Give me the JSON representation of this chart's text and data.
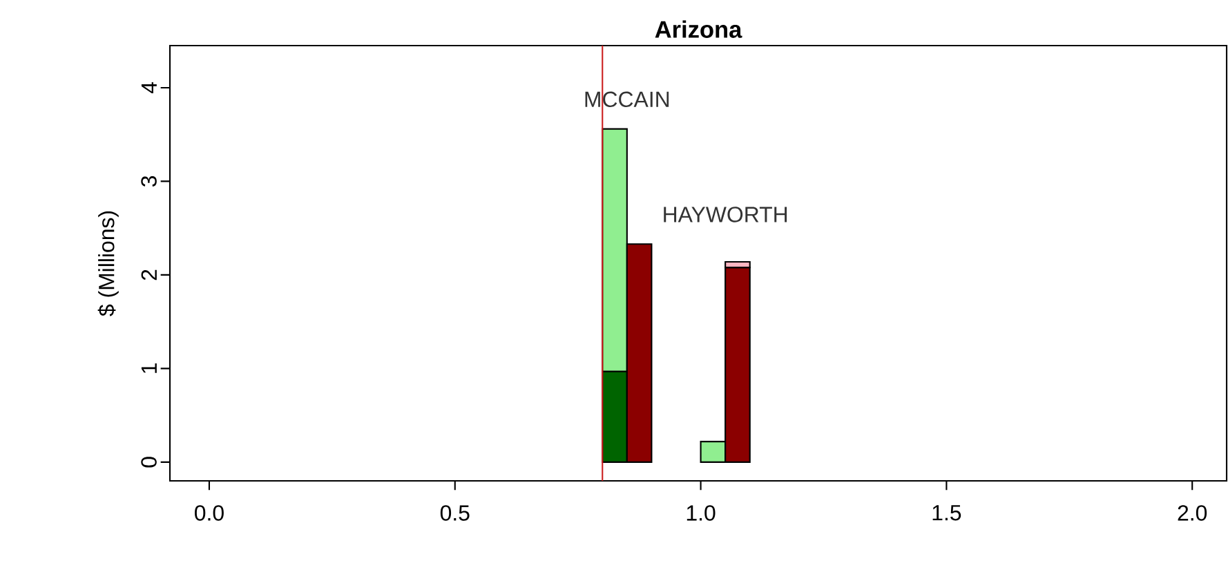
{
  "chart_data": {
    "type": "bar",
    "title": "Arizona",
    "ylabel": "$ (Millions)",
    "x": [
      0.825,
      0.875,
      1.025,
      1.075
    ],
    "stacked": true,
    "series": [
      {
        "color": "#006400",
        "values": [
          0.97,
          null,
          null,
          null
        ]
      },
      {
        "color": "#90ee90",
        "values": [
          2.59,
          null,
          0.22,
          null
        ]
      },
      {
        "color": "#8b0000",
        "values": [
          null,
          2.33,
          null,
          2.08
        ]
      },
      {
        "color": "#ffb6c1",
        "values": [
          null,
          null,
          null,
          0.06
        ]
      }
    ],
    "xlim": [
      -0.08,
      2.07
    ],
    "ylim": [
      -0.2,
      4.45
    ],
    "xticks": [
      {
        "value": 0,
        "label": "0.0"
      },
      {
        "value": 0.5,
        "label": "0.5"
      },
      {
        "value": 1,
        "label": "1.0"
      },
      {
        "value": 1.5,
        "label": "1.5"
      },
      {
        "value": 2,
        "label": "2.0"
      }
    ],
    "yticks": [
      0,
      1,
      2,
      3,
      4
    ],
    "ref_lines": [
      {
        "axis": "x",
        "value": 0.8,
        "color": "#cc2222"
      }
    ],
    "annotations": [
      "MCCAIN",
      "HAYWORTH"
    ]
  }
}
